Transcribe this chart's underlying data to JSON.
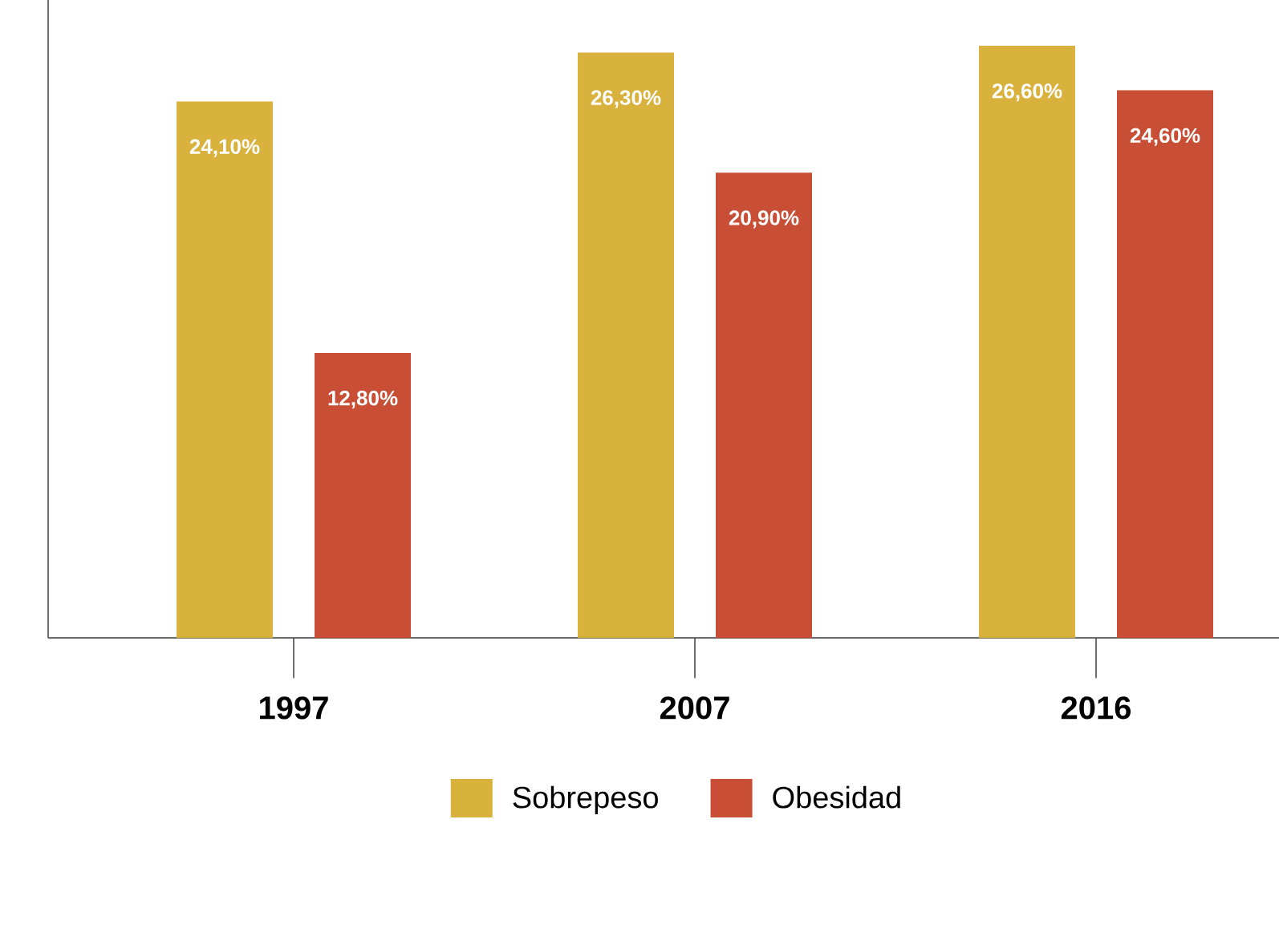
{
  "chart_data": {
    "type": "bar",
    "categories": [
      "1997",
      "2007",
      "2016"
    ],
    "series": [
      {
        "name": "Sobrepeso",
        "color": "#d9b23e",
        "values": [
          24.1,
          26.3,
          26.6
        ],
        "value_labels": [
          "24,10%",
          "26,30%",
          "26,60%"
        ]
      },
      {
        "name": "Obesidad",
        "color": "#c84f35",
        "values": [
          12.8,
          20.9,
          24.6
        ],
        "value_labels": [
          "12,80%",
          "20,90%",
          "24,60%"
        ]
      }
    ],
    "legend": "bottom"
  }
}
